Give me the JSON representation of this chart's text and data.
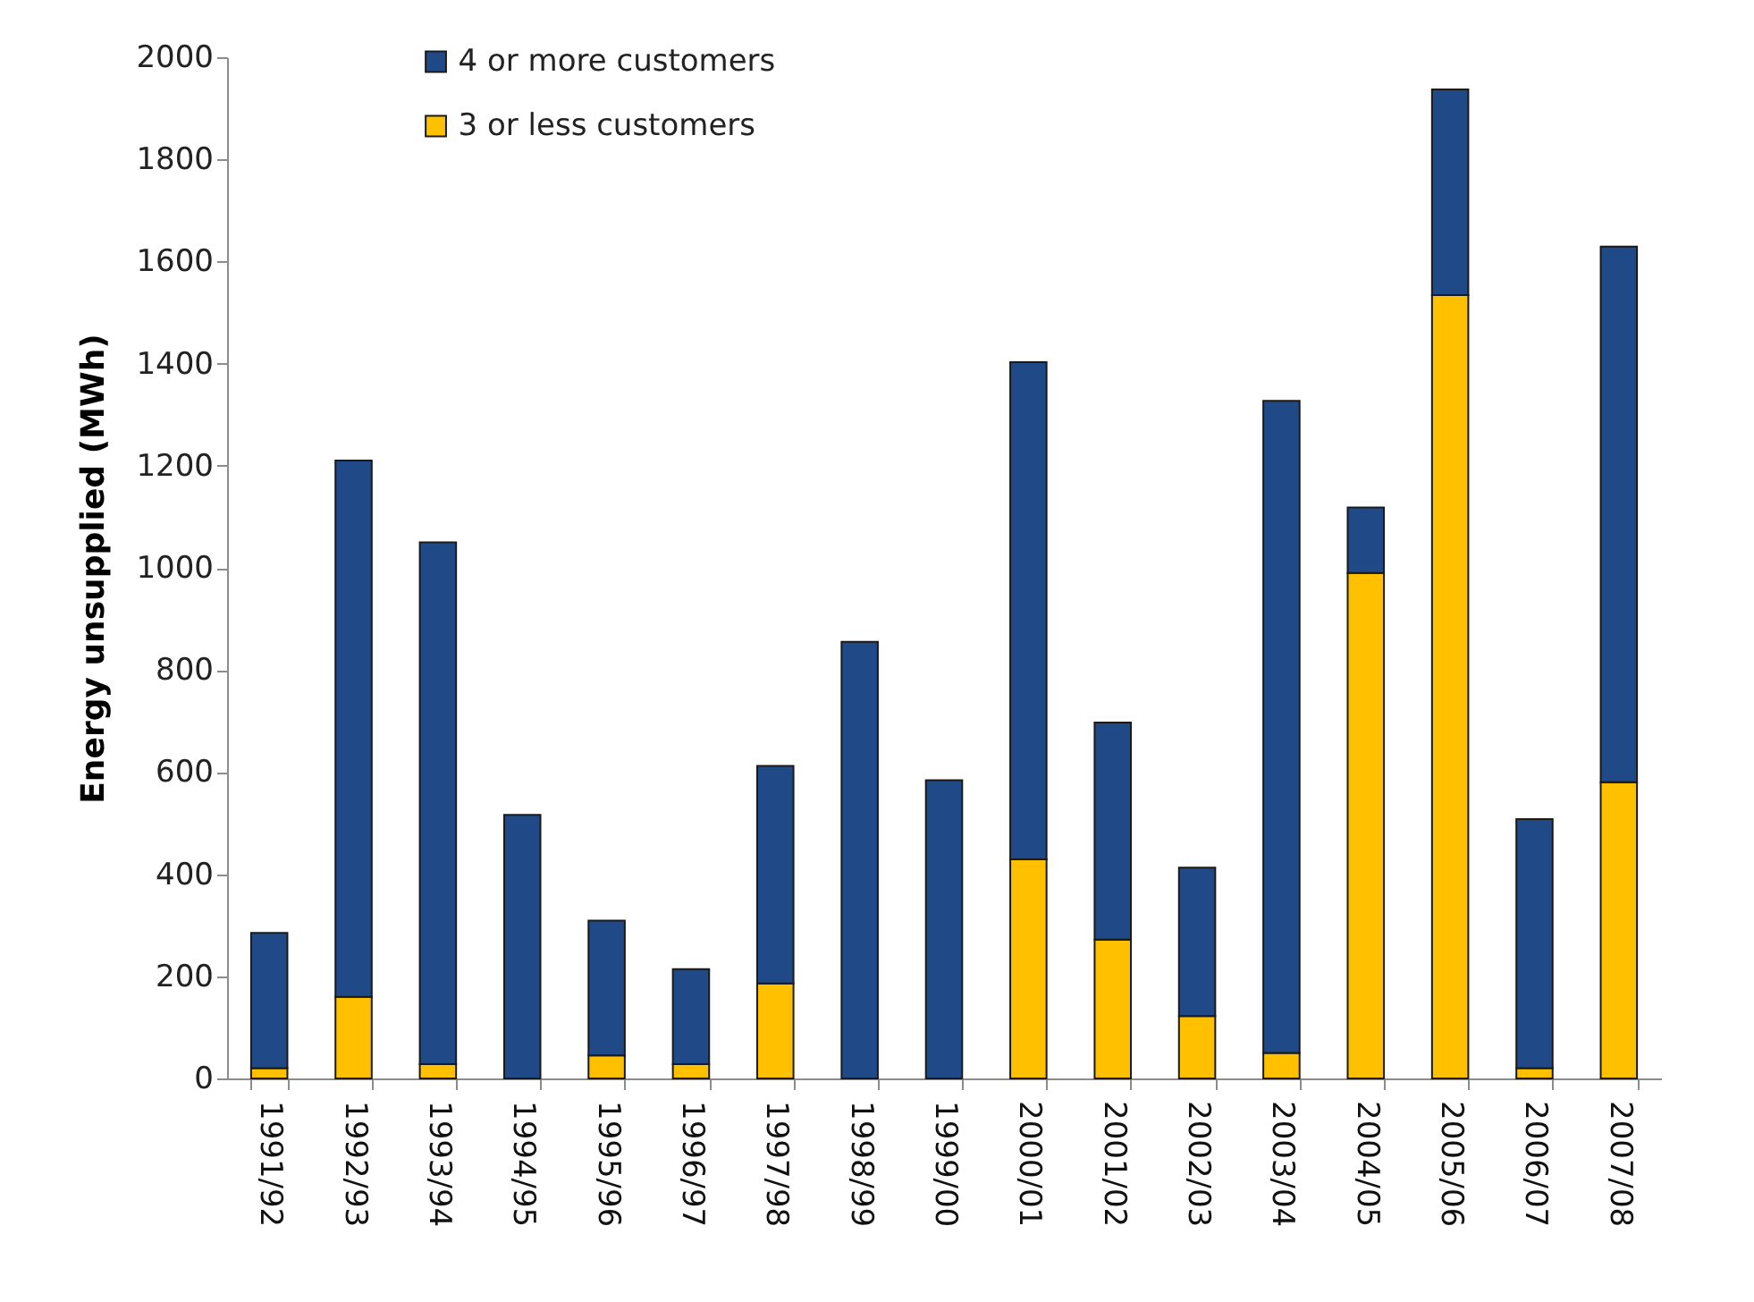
{
  "chart_data": {
    "type": "bar",
    "stacked": true,
    "ylabel": "Energy unsupplied (MWh)",
    "categories": [
      "1991/92",
      "1992/93",
      "1993/94",
      "1994/95",
      "1995/96",
      "1996/97",
      "1997/98",
      "1998/99",
      "1999/00",
      "2000/01",
      "2001/02",
      "2002/03",
      "2003/04",
      "2004/05",
      "2005/06",
      "2006/07",
      "2007/08"
    ],
    "series": [
      {
        "name": "3 or less customers",
        "color": "#ffc000",
        "values": [
          20,
          160,
          28,
          0,
          45,
          28,
          186,
          0,
          0,
          429,
          272,
          122,
          50,
          990,
          1534,
          20,
          580
        ]
      },
      {
        "name": "4 or more customers",
        "color": "#1f4a87",
        "values": [
          265,
          1050,
          1022,
          516,
          264,
          186,
          426,
          855,
          584,
          974,
          425,
          291,
          1277,
          128,
          403,
          488,
          1049
        ]
      }
    ],
    "ylim": [
      0,
      2000
    ],
    "yticks": [
      0,
      200,
      400,
      600,
      800,
      1000,
      1200,
      1400,
      1600,
      1800,
      2000
    ],
    "legend": "top left"
  }
}
